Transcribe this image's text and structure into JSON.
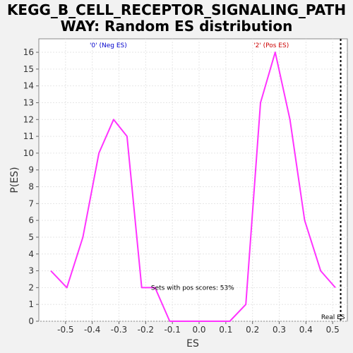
{
  "chart_data": {
    "type": "line",
    "title": "KEGG_B_CELL_RECEPTOR_SIGNALING_PATHWAY: Random ES distribution",
    "title_lines": [
      "KEGG_B_CELL_RECEPTOR_SIGNALING_PATH",
      "WAY: Random ES distribution"
    ],
    "xlabel": "ES",
    "ylabel": "P(ES)",
    "xlim": [
      -0.6,
      0.555
    ],
    "ylim": [
      0,
      16.8
    ],
    "x_ticks": [
      -0.5,
      -0.4,
      -0.3,
      -0.2,
      -0.1,
      0.0,
      0.1,
      0.2,
      0.3,
      0.4,
      0.5
    ],
    "x_tick_labels": [
      "-0.5",
      "-0.4",
      "-0.3",
      "-0.2",
      "-0.1",
      "0.0",
      "0.1",
      "0.2",
      "0.3",
      "0.4",
      "0.5"
    ],
    "y_ticks": [
      0,
      1,
      2,
      3,
      4,
      5,
      6,
      7,
      8,
      9,
      10,
      11,
      12,
      13,
      14,
      15,
      16
    ],
    "y_tick_labels": [
      "0",
      "1",
      "2",
      "3",
      "4",
      "5",
      "6",
      "7",
      "8",
      "9",
      "10",
      "11",
      "12",
      "13",
      "14",
      "15",
      "16"
    ],
    "grid": true,
    "series": [
      {
        "color": "#ff33ff",
        "x": [
          -0.555,
          -0.495,
          -0.435,
          -0.375,
          -0.32,
          -0.27,
          -0.215,
          -0.165,
          -0.11,
          -0.055,
          0.0,
          0.06,
          0.115,
          0.175,
          0.23,
          0.285,
          0.34,
          0.395,
          0.455,
          0.51
        ],
        "y": [
          3,
          2,
          5,
          10,
          12,
          11,
          2,
          2,
          0,
          0,
          0,
          0,
          0,
          1,
          13,
          16,
          12,
          6,
          3,
          2
        ]
      }
    ],
    "annotations": {
      "neg_label": "'0' (Neg ES)",
      "neg_color": "#0000cc",
      "pos_label": "'2' (Pos ES)",
      "pos_color": "#cc0000",
      "pos_scores_text": "Sets with pos scores: 53%",
      "pos_scores_x": -0.18,
      "pos_scores_y": 2,
      "real_es_label": "Real ES",
      "real_es_value": 0.53
    }
  }
}
